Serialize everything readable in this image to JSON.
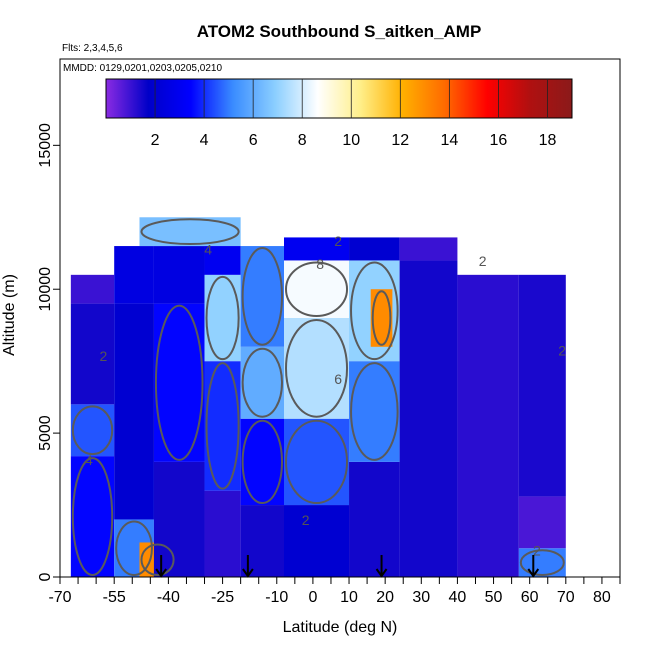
{
  "chart_data": {
    "type": "heatmap",
    "title": "ATOM2 Southbound S_aitken_AMP",
    "flights_note": "Flts: 2,3,4,5,6",
    "dates_note": "MMDD: 0129,0201,0203,0205,0210",
    "xlabel": "Latitude (deg N)",
    "ylabel": "Altitude (m)",
    "xlim": [
      -70,
      85
    ],
    "ylim": [
      0,
      18000
    ],
    "x_ticks": [
      -70,
      -55,
      -40,
      -25,
      -10,
      0,
      10,
      20,
      30,
      40,
      50,
      60,
      70,
      80
    ],
    "x_minor_ticks": [
      -65,
      -60,
      -50,
      -45,
      -35,
      -30,
      -20,
      -15,
      -5,
      5,
      15,
      25,
      35,
      45,
      55,
      65,
      75,
      85
    ],
    "y_ticks": [
      0,
      5000,
      10000,
      15000
    ],
    "colorbar": {
      "range": [
        0,
        19
      ],
      "ticks": [
        2,
        4,
        6,
        8,
        10,
        12,
        14,
        16,
        18
      ],
      "colors": [
        "#8a2be2",
        "#0000c8",
        "#0000ff",
        "#3a8cff",
        "#8ccfff",
        "#ffffff",
        "#ffef8a",
        "#ffb000",
        "#ff6a00",
        "#ff0000",
        "#b01010",
        "#8b1a1a"
      ]
    },
    "contour_labels": [
      {
        "x": -29,
        "y": 11200,
        "text": "4"
      },
      {
        "x": 7,
        "y": 11500,
        "text": "2"
      },
      {
        "x": 2,
        "y": 10700,
        "text": "8"
      },
      {
        "x": 47,
        "y": 10800,
        "text": "2"
      },
      {
        "x": -58,
        "y": 7500,
        "text": "2"
      },
      {
        "x": 7,
        "y": 6700,
        "text": "6"
      },
      {
        "x": 69,
        "y": 7700,
        "text": "2"
      },
      {
        "x": -62,
        "y": 3900,
        "text": "4"
      },
      {
        "x": -2,
        "y": 1800,
        "text": "2"
      },
      {
        "x": 62,
        "y": 750,
        "text": "2"
      }
    ],
    "arrows": [
      -42,
      -18,
      19,
      61
    ],
    "cells": [
      {
        "lat": [
          -67,
          -55
        ],
        "alt": [
          0,
          4200
        ],
        "v": 3.5
      },
      {
        "lat": [
          -67,
          -55
        ],
        "alt": [
          4200,
          6000
        ],
        "v": 4.5
      },
      {
        "lat": [
          -67,
          -55
        ],
        "alt": [
          6000,
          9500
        ],
        "v": 1.5
      },
      {
        "lat": [
          -67,
          -55
        ],
        "alt": [
          9500,
          10500
        ],
        "v": 1.0
      },
      {
        "lat": [
          -55,
          -44
        ],
        "alt": [
          0,
          2000
        ],
        "v": 5.0
      },
      {
        "lat": [
          -55,
          -44
        ],
        "alt": [
          2000,
          9500
        ],
        "v": 2.0
      },
      {
        "lat": [
          -55,
          -44
        ],
        "alt": [
          9500,
          11500
        ],
        "v": 2.5
      },
      {
        "lat": [
          -48,
          -38
        ],
        "alt": [
          0,
          1200
        ],
        "v": 13.0
      },
      {
        "lat": [
          -44,
          -30
        ],
        "alt": [
          0,
          4000
        ],
        "v": 1.5
      },
      {
        "lat": [
          -44,
          -30
        ],
        "alt": [
          4000,
          9500
        ],
        "v": 3.5
      },
      {
        "lat": [
          -44,
          -30
        ],
        "alt": [
          9500,
          11500
        ],
        "v": 2.5
      },
      {
        "lat": [
          -48,
          -20
        ],
        "alt": [
          11500,
          12500
        ],
        "v": 6.5
      },
      {
        "lat": [
          -30,
          -20
        ],
        "alt": [
          0,
          3000
        ],
        "v": 1.2
      },
      {
        "lat": [
          -30,
          -20
        ],
        "alt": [
          3000,
          7500
        ],
        "v": 4.0
      },
      {
        "lat": [
          -30,
          -20
        ],
        "alt": [
          7500,
          10500
        ],
        "v": 7.0
      },
      {
        "lat": [
          -30,
          -20
        ],
        "alt": [
          10500,
          11500
        ],
        "v": 3.0
      },
      {
        "lat": [
          -20,
          -8
        ],
        "alt": [
          0,
          2500
        ],
        "v": 1.5
      },
      {
        "lat": [
          -20,
          -8
        ],
        "alt": [
          2500,
          5500
        ],
        "v": 3.5
      },
      {
        "lat": [
          -20,
          -8
        ],
        "alt": [
          5500,
          8000
        ],
        "v": 6.0
      },
      {
        "lat": [
          -20,
          -8
        ],
        "alt": [
          8000,
          11500
        ],
        "v": 5.0
      },
      {
        "lat": [
          -8,
          10
        ],
        "alt": [
          0,
          2500
        ],
        "v": 2.0
      },
      {
        "lat": [
          -8,
          10
        ],
        "alt": [
          2500,
          5500
        ],
        "v": 4.5
      },
      {
        "lat": [
          -8,
          10
        ],
        "alt": [
          5500,
          9000
        ],
        "v": 7.5
      },
      {
        "lat": [
          -8,
          10
        ],
        "alt": [
          9000,
          11000
        ],
        "v": 8.5
      },
      {
        "lat": [
          -8,
          10
        ],
        "alt": [
          11000,
          11800
        ],
        "v": 3.0
      },
      {
        "lat": [
          10,
          24
        ],
        "alt": [
          0,
          4000
        ],
        "v": 1.5
      },
      {
        "lat": [
          10,
          24
        ],
        "alt": [
          4000,
          7500
        ],
        "v": 5.0
      },
      {
        "lat": [
          10,
          24
        ],
        "alt": [
          7500,
          11000
        ],
        "v": 7.0
      },
      {
        "lat": [
          10,
          24
        ],
        "alt": [
          11000,
          11800
        ],
        "v": 2.0
      },
      {
        "lat": [
          16,
          22
        ],
        "alt": [
          8000,
          10000
        ],
        "v": 13.0
      },
      {
        "lat": [
          24,
          40
        ],
        "alt": [
          0,
          11000
        ],
        "v": 1.5
      },
      {
        "lat": [
          24,
          40
        ],
        "alt": [
          11000,
          11800
        ],
        "v": 1.0
      },
      {
        "lat": [
          40,
          57
        ],
        "alt": [
          0,
          10500
        ],
        "v": 1.2
      },
      {
        "lat": [
          57,
          70
        ],
        "alt": [
          0,
          1000
        ],
        "v": 5.0
      },
      {
        "lat": [
          57,
          70
        ],
        "alt": [
          1000,
          2800
        ],
        "v": 0.8
      },
      {
        "lat": [
          57,
          70
        ],
        "alt": [
          2800,
          10500
        ],
        "v": 1.4
      }
    ]
  }
}
